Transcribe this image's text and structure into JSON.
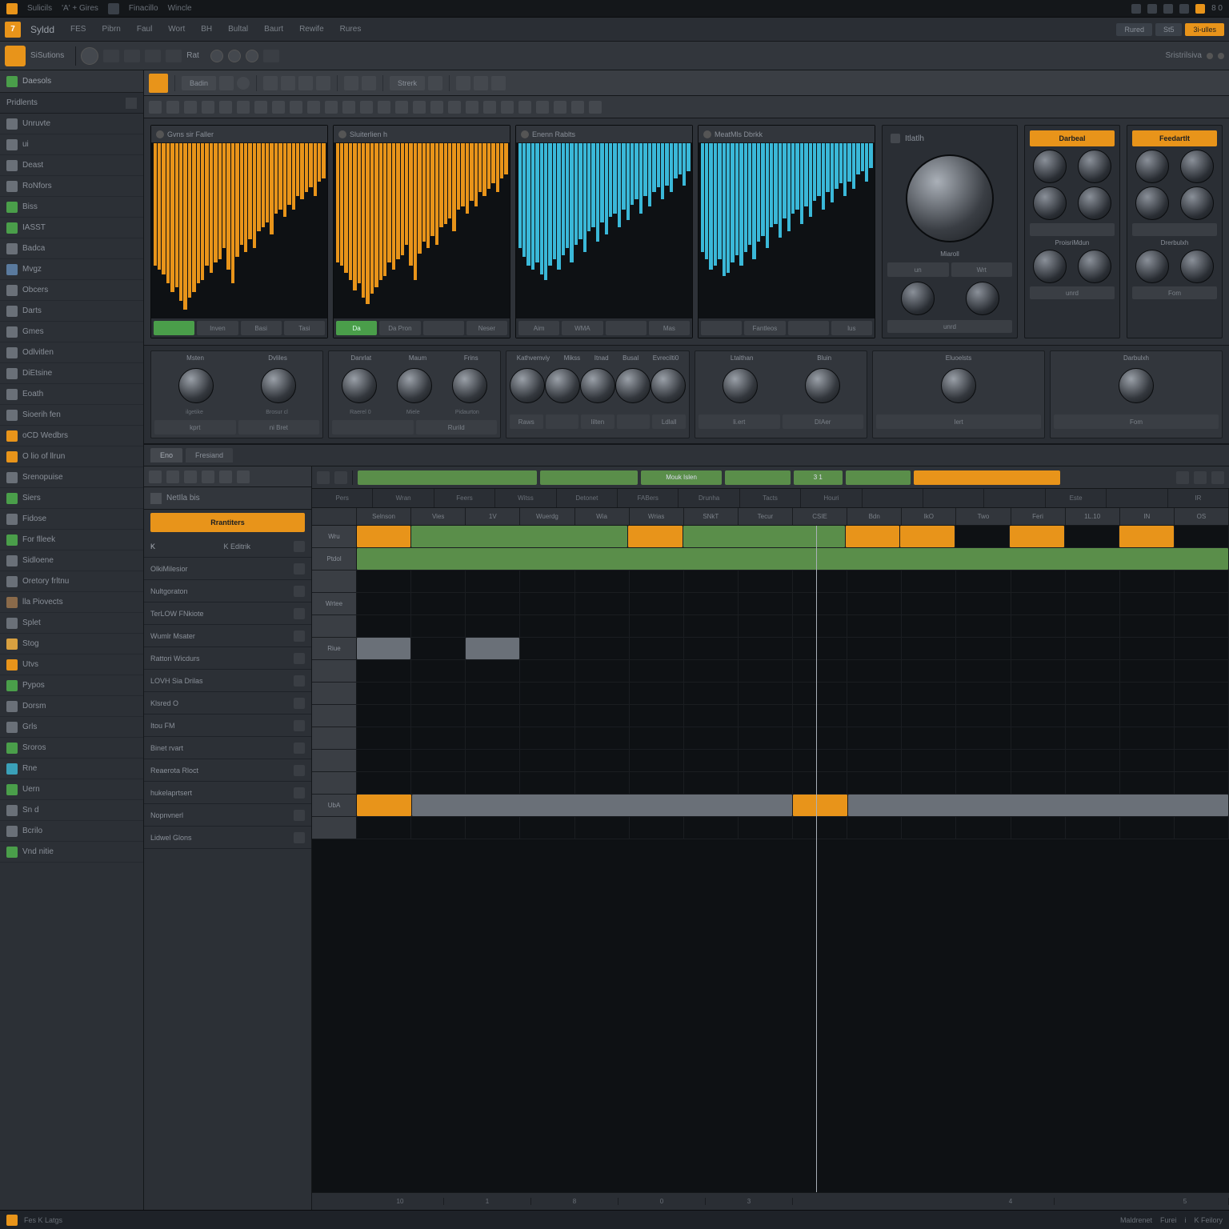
{
  "titlebar": {
    "items": [
      "Sulicils",
      "'A' + Gires",
      "Finacillo",
      "Wincle"
    ],
    "right_icons": 6
  },
  "menubar": {
    "logo": "7",
    "brand": "Syldd",
    "items": [
      "FES",
      "Pibrn",
      "Faul",
      "Wort",
      "BH",
      "Bultal",
      "Baurt",
      "Rewife",
      "Rures"
    ],
    "chips": [
      "Rured",
      "St5"
    ],
    "orange": "3i-ulles"
  },
  "toolbar1": {
    "label": "SiSutions",
    "controls": 10,
    "dropdown": "Rat",
    "end": "Sristrilsiva"
  },
  "sidebar": {
    "header": "Daesols",
    "section": "Pridlents",
    "items": [
      {
        "label": "Unruvte",
        "color": "#6a7078"
      },
      {
        "label": "ui",
        "color": "#6a7078"
      },
      {
        "label": "Deast",
        "color": "#6a7078"
      },
      {
        "label": "RoNfors",
        "color": "#6a7078"
      },
      {
        "label": "Biss",
        "color": "#4a9e4a"
      },
      {
        "label": "IASST",
        "color": "#4a9e4a"
      },
      {
        "label": "Badca",
        "color": "#6a7078"
      },
      {
        "label": "Mvgz",
        "color": "#5a7a9e"
      },
      {
        "label": "Obcers",
        "color": "#6a7078"
      },
      {
        "label": "Darts",
        "color": "#6a7078"
      },
      {
        "label": "Gmes",
        "color": "#6a7078"
      },
      {
        "label": "Odlvitlen",
        "color": "#6a7078"
      },
      {
        "label": "DiEtsine",
        "color": "#6a7078"
      },
      {
        "label": "Eoath",
        "color": "#6a7078"
      },
      {
        "label": "Sioerih fen",
        "color": "#6a7078"
      },
      {
        "label": "oCD Wedbrs",
        "color": "#e8941a"
      },
      {
        "label": "O lio of llrun",
        "color": "#e8941a"
      },
      {
        "label": "Srenopuise",
        "color": "#6a7078"
      },
      {
        "label": "Siers",
        "color": "#4a9e4a"
      },
      {
        "label": "Fidose",
        "color": "#6a7078"
      },
      {
        "label": "For flleek",
        "color": "#4a9e4a"
      },
      {
        "label": "Sidloene",
        "color": "#6a7078"
      },
      {
        "label": "Oretory frltnu",
        "color": "#6a7078"
      },
      {
        "label": "lla Piovects",
        "color": "#8a6a4a"
      },
      {
        "label": "Splet",
        "color": "#6a7078"
      },
      {
        "label": "Stog",
        "color": "#d8a040"
      },
      {
        "label": "Utvs",
        "color": "#e8941a"
      },
      {
        "label": "Pypos",
        "color": "#4a9e4a"
      },
      {
        "label": "Dorsm",
        "color": "#6a7078"
      },
      {
        "label": "Grls",
        "color": "#6a7078"
      },
      {
        "label": "Sroros",
        "color": "#4a9e4a"
      },
      {
        "label": "Rne",
        "color": "#3aa0b8"
      },
      {
        "label": "Uern",
        "color": "#4a9e4a"
      },
      {
        "label": "Sn d",
        "color": "#6a7078"
      },
      {
        "label": "Bcrilo",
        "color": "#6a7078"
      },
      {
        "label": "Vnd nitie",
        "color": "#4a9e4a"
      }
    ]
  },
  "toolbar2": {
    "label": "Badin",
    "dropdown": "Strerk"
  },
  "spectrums": [
    {
      "title": "Gvns sir Faller",
      "color": "#e8941a",
      "btns": [
        "",
        "Inven",
        "Basi",
        "Tasi"
      ],
      "on": 0,
      "bars": [
        70,
        72,
        75,
        80,
        85,
        82,
        90,
        95,
        88,
        85,
        80,
        78,
        70,
        74,
        68,
        66,
        60,
        72,
        80,
        65,
        58,
        62,
        55,
        60,
        50,
        48,
        45,
        52,
        40,
        38,
        42,
        35,
        38,
        30,
        32,
        28,
        25,
        30,
        22,
        20
      ]
    },
    {
      "title": "Sluiterlien h",
      "color": "#e8941a",
      "btns": [
        "Da",
        "Da Pron",
        "",
        "Neser"
      ],
      "on": 0,
      "bars": [
        68,
        70,
        74,
        78,
        84,
        80,
        88,
        92,
        86,
        82,
        78,
        76,
        68,
        72,
        66,
        64,
        58,
        70,
        78,
        63,
        56,
        60,
        53,
        58,
        48,
        46,
        43,
        50,
        38,
        36,
        40,
        33,
        36,
        28,
        30,
        26,
        23,
        28,
        20,
        18
      ]
    },
    {
      "title": "Enenn Rablts",
      "color": "#3ab8d8",
      "btns": [
        "Aim",
        "WMA",
        "",
        "Mas"
      ],
      "on": -1,
      "bars": [
        60,
        65,
        70,
        72,
        68,
        75,
        78,
        70,
        66,
        72,
        64,
        60,
        68,
        58,
        55,
        62,
        50,
        48,
        56,
        45,
        52,
        42,
        40,
        48,
        38,
        44,
        35,
        32,
        40,
        30,
        36,
        28,
        25,
        32,
        24,
        28,
        20,
        18,
        24,
        16
      ]
    },
    {
      "title": "MeatMls Dbrkk",
      "color": "#3ab8d8",
      "btns": [
        "",
        "Fantleos",
        "",
        "lus"
      ],
      "on": -1,
      "bars": [
        62,
        66,
        72,
        70,
        66,
        76,
        74,
        68,
        64,
        70,
        62,
        58,
        66,
        56,
        53,
        60,
        48,
        46,
        54,
        43,
        50,
        40,
        38,
        46,
        36,
        42,
        33,
        30,
        38,
        28,
        34,
        26,
        23,
        30,
        22,
        26,
        18,
        16,
        22,
        14
      ]
    }
  ],
  "dial": {
    "title": "Itlatlh",
    "sub": "Miaroll",
    "btns": [
      "un",
      "Wrt"
    ]
  },
  "side_panels": [
    {
      "hdr": "Darbeal",
      "sub": "ProisriMdun",
      "btn": "unrd"
    },
    {
      "hdr": "Feedartlt",
      "sub": "Drerbulxh",
      "btn": "Fom"
    }
  ],
  "knob_groups": [
    {
      "labels": [
        "Msten",
        "Dvliles"
      ],
      "subs": [
        "ilgetike",
        "Brosur cl"
      ],
      "btns": [
        "kprt",
        "ni Bret"
      ]
    },
    {
      "labels": [
        "Danrlat",
        "Maum",
        "Frins"
      ],
      "subs": [
        "Raerel 0",
        "Miele",
        "Pidaurton"
      ],
      "btns": [
        "",
        "Rurild"
      ]
    },
    {
      "labels": [
        "Kathvemviy",
        "Mikss",
        "Itnad",
        "Busal",
        "Evrecilti0"
      ],
      "subs": [
        "",
        "",
        "",
        "",
        ""
      ],
      "btns": [
        "Raws",
        "",
        "lilten",
        "",
        "Ldlall"
      ]
    },
    {
      "labels": [
        "Ltalthan",
        "Bluin"
      ],
      "subs": [
        "",
        ""
      ],
      "btns": [
        "li.ert",
        "DIAer"
      ]
    },
    {
      "labels": [
        "Eluoelsts"
      ],
      "subs": [
        ""
      ],
      "btns": [
        "Iert"
      ]
    },
    {
      "labels": [
        "Darbulxh"
      ],
      "subs": [
        ""
      ],
      "btns": [
        "Fom"
      ]
    }
  ],
  "tabs": [
    "Eno",
    "Fresiand"
  ],
  "seq": {
    "side_title": "NetIla bis",
    "side_btn": "Rrantiters",
    "tracks": [
      "K Editrik",
      "OlkiMilesior",
      "Nultgoraton",
      "TerLOW FNkiote",
      "Wumlr Msater",
      "Rattori Wicdurs",
      "LOVH Sia Drilas",
      "Klsred O",
      "Itou FM",
      "Binet rvart",
      "Reaerota Rloct",
      "hukelaprtsert",
      "Nopnvnerl",
      "Lidwel Glons"
    ],
    "ruler": [
      "Pers",
      "Wran",
      "Feers",
      "Witss",
      "Detonet",
      "FABers",
      "Drunha",
      "Tacts",
      "Houri",
      "",
      "",
      "",
      "Este",
      "",
      "IR"
    ],
    "ruler2": [
      "Selnson",
      "Vies",
      "1V",
      "Wuerdg",
      "Wia",
      "Wrias",
      "SNkT",
      "Tecur",
      "CSIE",
      "Bdn",
      "IkO",
      "Two",
      "Feri",
      "1L.10",
      "IN",
      "OS"
    ],
    "row_hdrs": [
      "Wru",
      "Ptdol",
      "",
      "Wrtee",
      "",
      "Riue",
      "",
      "",
      "",
      "",
      "",
      "",
      "UbA",
      ""
    ],
    "clips": [
      {
        "row": 0,
        "col": 0,
        "span": 1,
        "c": "o"
      },
      {
        "row": 0,
        "col": 1,
        "span": 4,
        "c": "g"
      },
      {
        "row": 0,
        "col": 5,
        "span": 1,
        "c": "o"
      },
      {
        "row": 0,
        "col": 6,
        "span": 3,
        "c": "g"
      },
      {
        "row": 0,
        "col": 9,
        "span": 1,
        "c": "o"
      },
      {
        "row": 0,
        "col": 10,
        "span": 1,
        "c": "o"
      },
      {
        "row": 0,
        "col": 12,
        "span": 1,
        "c": "o"
      },
      {
        "row": 0,
        "col": 14,
        "span": 1,
        "c": "o"
      },
      {
        "row": 1,
        "col": 0,
        "span": 16,
        "c": "g"
      },
      {
        "row": 5,
        "col": 0,
        "span": 1,
        "c": "gr"
      },
      {
        "row": 5,
        "col": 2,
        "span": 1,
        "c": "gr"
      },
      {
        "row": 12,
        "col": 0,
        "span": 1,
        "c": "o"
      },
      {
        "row": 12,
        "col": 1,
        "span": 7,
        "c": "gr"
      },
      {
        "row": 12,
        "col": 8,
        "span": 1,
        "c": "o"
      },
      {
        "row": 12,
        "col": 9,
        "span": 7,
        "c": "gr"
      }
    ],
    "clip_bar": [
      {
        "w": 22,
        "c": "g"
      },
      {
        "w": 12,
        "c": "g"
      },
      {
        "w": 10,
        "c": "g",
        "label": "Mouk Islen"
      },
      {
        "w": 8,
        "c": "g"
      },
      {
        "w": 6,
        "c": "g",
        "label": "3 1"
      },
      {
        "w": 8,
        "c": "g"
      },
      {
        "w": 18,
        "c": "o"
      }
    ],
    "footer_ticks": [
      "10",
      "1",
      "8",
      "0",
      "3",
      "",
      "",
      "4",
      "",
      "5"
    ]
  },
  "statusbar": {
    "left": "Fes K Latgs",
    "right": [
      "Maldrenet",
      "Furei",
      "i",
      "K Feilory"
    ]
  },
  "colors": {
    "orange": "#e8941a",
    "green": "#5a8e4a",
    "cyan": "#3ab8d8",
    "bg": "#1a1d21",
    "panel": "#2e3238"
  }
}
